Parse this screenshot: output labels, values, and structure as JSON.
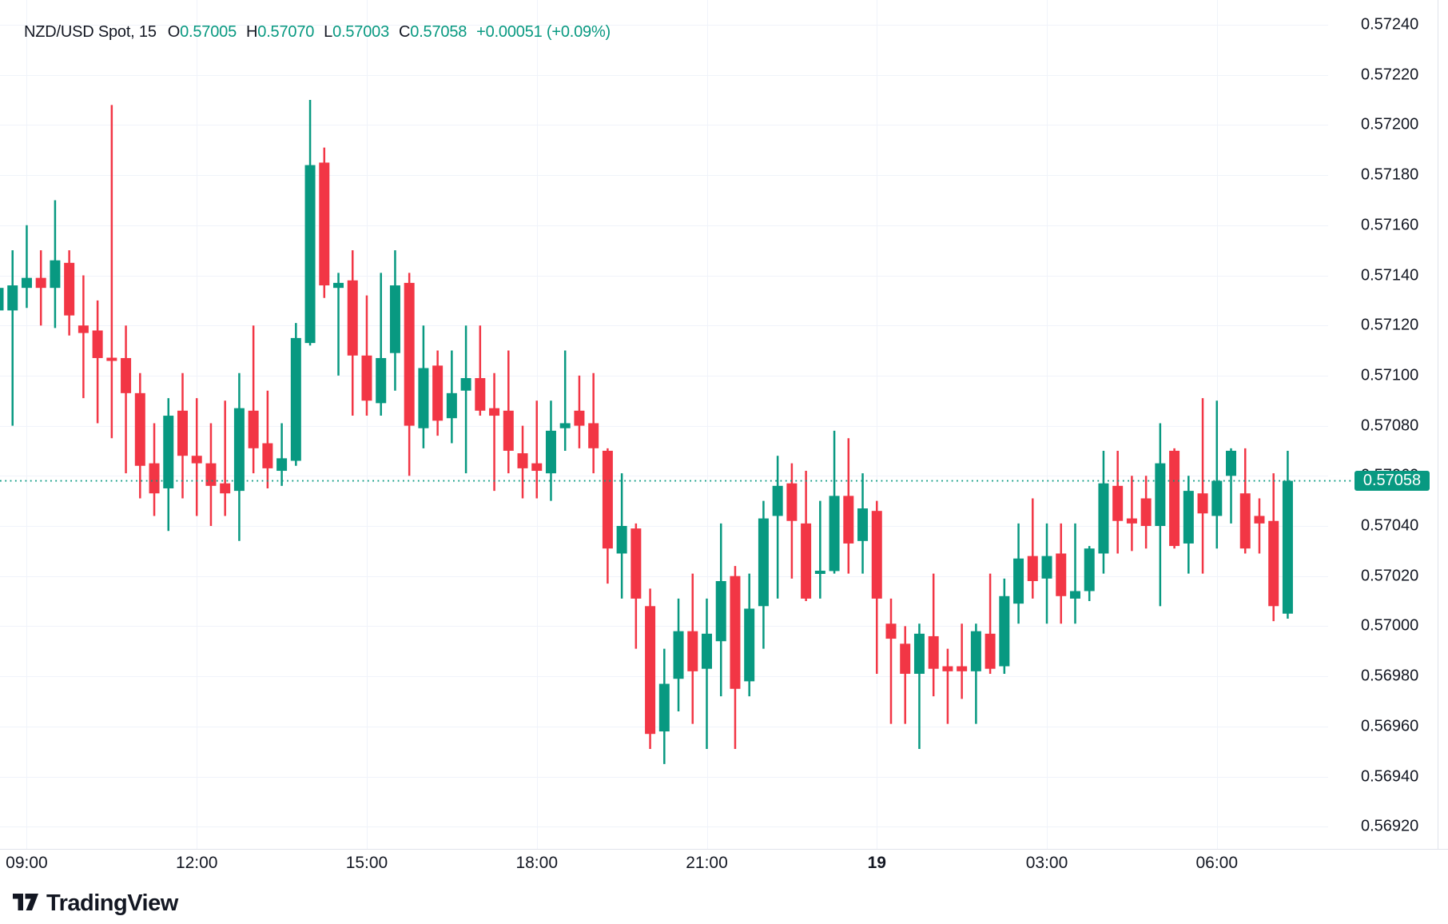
{
  "legend": {
    "symbol": "NZD/USD Spot, 15",
    "ohlc": [
      {
        "label": "O",
        "value": "0.57005"
      },
      {
        "label": "H",
        "value": "0.57070"
      },
      {
        "label": "L",
        "value": "0.57003"
      },
      {
        "label": "C",
        "value": "0.57058"
      }
    ],
    "change": "+0.00051 (+0.09%)"
  },
  "price_axis": {
    "labels": [
      "0.57240",
      "0.57220",
      "0.57200",
      "0.57180",
      "0.57160",
      "0.57140",
      "0.57120",
      "0.57100",
      "0.57080",
      "0.57060",
      "0.57040",
      "0.57020",
      "0.57000",
      "0.56980",
      "0.56960",
      "0.56940",
      "0.56920"
    ],
    "last_price_label": "0.57058"
  },
  "time_axis": {
    "labels": [
      {
        "text": "09:00",
        "index": 2,
        "bold": false
      },
      {
        "text": "12:00",
        "index": 14,
        "bold": false
      },
      {
        "text": "15:00",
        "index": 26,
        "bold": false
      },
      {
        "text": "18:00",
        "index": 38,
        "bold": false
      },
      {
        "text": "21:00",
        "index": 50,
        "bold": false
      },
      {
        "text": "19",
        "index": 62,
        "bold": true
      },
      {
        "text": "03:00",
        "index": 74,
        "bold": false
      },
      {
        "text": "06:00",
        "index": 86,
        "bold": false
      }
    ]
  },
  "watermark": "TradingView",
  "colors": {
    "up": "#089981",
    "down": "#F23645",
    "grid": "#F0F3FA",
    "axis_border": "#E0E3EB",
    "text": "#131722",
    "badge_bg": "#089981",
    "badge_text": "#FFFFFF",
    "price_line": "#089981"
  },
  "chart_data": {
    "type": "candlestick",
    "title": "NZD/USD Spot, 15",
    "timeframe_minutes": 15,
    "ylim": [
      0.56912,
      0.57248
    ],
    "y_tick_step": 0.0002,
    "last_price": 0.57058,
    "legend_position": "top-left",
    "grid": true,
    "candles": [
      [
        0.57126,
        0.57137,
        0.57124,
        0.57135
      ],
      [
        0.57126,
        0.5715,
        0.5708,
        0.57136
      ],
      [
        0.57135,
        0.5716,
        0.57127,
        0.57139
      ],
      [
        0.57139,
        0.5715,
        0.5712,
        0.57135
      ],
      [
        0.57135,
        0.5717,
        0.57119,
        0.57146
      ],
      [
        0.57145,
        0.5715,
        0.57116,
        0.57124
      ],
      [
        0.5712,
        0.5714,
        0.57091,
        0.57117
      ],
      [
        0.57118,
        0.5713,
        0.57081,
        0.57107
      ],
      [
        0.57107,
        0.57208,
        0.57075,
        0.57106
      ],
      [
        0.57107,
        0.5712,
        0.57061,
        0.57093
      ],
      [
        0.57093,
        0.57101,
        0.57051,
        0.57064
      ],
      [
        0.57065,
        0.57081,
        0.57044,
        0.57053
      ],
      [
        0.57055,
        0.57091,
        0.57038,
        0.57084
      ],
      [
        0.57086,
        0.57101,
        0.57051,
        0.57068
      ],
      [
        0.57068,
        0.57091,
        0.57044,
        0.57065
      ],
      [
        0.57065,
        0.57081,
        0.5704,
        0.57056
      ],
      [
        0.57057,
        0.5709,
        0.57044,
        0.57053
      ],
      [
        0.57054,
        0.57101,
        0.57034,
        0.57087
      ],
      [
        0.57086,
        0.5712,
        0.57061,
        0.57071
      ],
      [
        0.57073,
        0.57094,
        0.57055,
        0.57063
      ],
      [
        0.57062,
        0.57081,
        0.57056,
        0.57067
      ],
      [
        0.57066,
        0.57121,
        0.57064,
        0.57115
      ],
      [
        0.57113,
        0.5721,
        0.57112,
        0.57184
      ],
      [
        0.57185,
        0.57191,
        0.57131,
        0.57136
      ],
      [
        0.57135,
        0.57141,
        0.571,
        0.57137
      ],
      [
        0.57138,
        0.5715,
        0.57084,
        0.57108
      ],
      [
        0.57108,
        0.57132,
        0.57084,
        0.5709
      ],
      [
        0.57089,
        0.57141,
        0.57084,
        0.57107
      ],
      [
        0.57109,
        0.5715,
        0.57094,
        0.57136
      ],
      [
        0.57137,
        0.57141,
        0.5706,
        0.5708
      ],
      [
        0.57079,
        0.5712,
        0.57071,
        0.57103
      ],
      [
        0.57104,
        0.5711,
        0.57076,
        0.57082
      ],
      [
        0.57083,
        0.5711,
        0.57073,
        0.57093
      ],
      [
        0.57094,
        0.5712,
        0.57061,
        0.57099
      ],
      [
        0.57099,
        0.5712,
        0.57084,
        0.57086
      ],
      [
        0.57087,
        0.57101,
        0.57054,
        0.57084
      ],
      [
        0.57086,
        0.5711,
        0.57061,
        0.5707
      ],
      [
        0.57069,
        0.5708,
        0.57051,
        0.57063
      ],
      [
        0.57065,
        0.5709,
        0.57051,
        0.57062
      ],
      [
        0.57061,
        0.5709,
        0.5705,
        0.57078
      ],
      [
        0.57079,
        0.5711,
        0.5707,
        0.57081
      ],
      [
        0.57086,
        0.571,
        0.57071,
        0.5708
      ],
      [
        0.57081,
        0.57101,
        0.57061,
        0.57071
      ],
      [
        0.5707,
        0.57071,
        0.57017,
        0.57031
      ],
      [
        0.57029,
        0.57061,
        0.57011,
        0.5704
      ],
      [
        0.57039,
        0.57041,
        0.56991,
        0.57011
      ],
      [
        0.57008,
        0.57015,
        0.56951,
        0.56957
      ],
      [
        0.56958,
        0.56991,
        0.56945,
        0.56977
      ],
      [
        0.56979,
        0.57011,
        0.56966,
        0.56998
      ],
      [
        0.56998,
        0.57021,
        0.56961,
        0.56982
      ],
      [
        0.56983,
        0.57011,
        0.56951,
        0.56997
      ],
      [
        0.56994,
        0.57041,
        0.56972,
        0.57018
      ],
      [
        0.5702,
        0.57024,
        0.56951,
        0.56975
      ],
      [
        0.56978,
        0.57021,
        0.56972,
        0.57007
      ],
      [
        0.57008,
        0.5705,
        0.56991,
        0.57043
      ],
      [
        0.57044,
        0.57068,
        0.57011,
        0.57056
      ],
      [
        0.57057,
        0.57065,
        0.57019,
        0.57042
      ],
      [
        0.57041,
        0.57062,
        0.5701,
        0.57011
      ],
      [
        0.57021,
        0.5705,
        0.57011,
        0.57022
      ],
      [
        0.57022,
        0.57078,
        0.57021,
        0.57052
      ],
      [
        0.57052,
        0.57075,
        0.57021,
        0.57033
      ],
      [
        0.57034,
        0.57061,
        0.57021,
        0.57047
      ],
      [
        0.57046,
        0.5705,
        0.56981,
        0.57011
      ],
      [
        0.57001,
        0.57011,
        0.56961,
        0.56995
      ],
      [
        0.56993,
        0.57,
        0.56961,
        0.56981
      ],
      [
        0.56981,
        0.57001,
        0.56951,
        0.56997
      ],
      [
        0.56996,
        0.57021,
        0.56972,
        0.56983
      ],
      [
        0.56984,
        0.56991,
        0.56961,
        0.56982
      ],
      [
        0.56984,
        0.57001,
        0.56971,
        0.56982
      ],
      [
        0.56982,
        0.57001,
        0.56961,
        0.56998
      ],
      [
        0.56997,
        0.57021,
        0.56981,
        0.56983
      ],
      [
        0.56984,
        0.57019,
        0.56981,
        0.57012
      ],
      [
        0.57009,
        0.57041,
        0.57001,
        0.57027
      ],
      [
        0.57028,
        0.57051,
        0.57011,
        0.57018
      ],
      [
        0.57019,
        0.57041,
        0.57001,
        0.57028
      ],
      [
        0.57029,
        0.57041,
        0.57001,
        0.57012
      ],
      [
        0.57011,
        0.57041,
        0.57001,
        0.57014
      ],
      [
        0.57014,
        0.57032,
        0.5701,
        0.57031
      ],
      [
        0.57029,
        0.5707,
        0.57021,
        0.57057
      ],
      [
        0.57056,
        0.5707,
        0.57029,
        0.57042
      ],
      [
        0.57043,
        0.5706,
        0.5703,
        0.57041
      ],
      [
        0.57051,
        0.5706,
        0.57031,
        0.5704
      ],
      [
        0.5704,
        0.57081,
        0.57008,
        0.57065
      ],
      [
        0.5707,
        0.57071,
        0.57031,
        0.57032
      ],
      [
        0.57033,
        0.5706,
        0.57021,
        0.57054
      ],
      [
        0.57053,
        0.57091,
        0.57021,
        0.57045
      ],
      [
        0.57044,
        0.5709,
        0.57031,
        0.57058
      ],
      [
        0.5706,
        0.57071,
        0.57041,
        0.5707
      ],
      [
        0.57053,
        0.57071,
        0.57029,
        0.57031
      ],
      [
        0.57044,
        0.57051,
        0.57029,
        0.57041
      ],
      [
        0.57042,
        0.57061,
        0.57002,
        0.57008
      ],
      [
        0.57005,
        0.5707,
        0.57003,
        0.57058
      ]
    ]
  }
}
